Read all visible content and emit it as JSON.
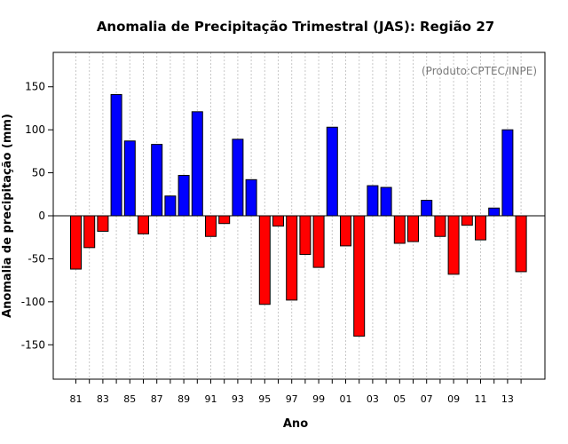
{
  "chart_data": {
    "type": "bar",
    "title": "Anomalia de Precipitação Trimestral (JAS): Região 27",
    "xlabel": "Ano",
    "ylabel": "Anomalia de precipitação (mm)",
    "source_note": "(Produto:CPTEC/INPE)",
    "ylim": [
      -190,
      190
    ],
    "yticks": [
      -150,
      -100,
      -50,
      0,
      50,
      100,
      150
    ],
    "categories": [
      "81",
      "82",
      "83",
      "84",
      "85",
      "86",
      "87",
      "88",
      "89",
      "90",
      "91",
      "92",
      "93",
      "94",
      "95",
      "96",
      "97",
      "98",
      "99",
      "00",
      "01",
      "02",
      "03",
      "04",
      "05",
      "06",
      "07",
      "08",
      "09",
      "10",
      "11",
      "12",
      "13",
      "14"
    ],
    "xtick_labels_shown": [
      "81",
      "83",
      "85",
      "87",
      "89",
      "91",
      "93",
      "95",
      "97",
      "99",
      "01",
      "03",
      "05",
      "07",
      "09",
      "11",
      "13"
    ],
    "values": [
      -62,
      -37,
      -18,
      141,
      87,
      -21,
      83,
      23,
      47,
      121,
      -24,
      -9,
      89,
      42,
      -103,
      -12,
      -98,
      -45,
      -60,
      103,
      -35,
      -140,
      35,
      33,
      -32,
      -30,
      18,
      -24,
      -68,
      -11,
      -28,
      9,
      100,
      -65
    ],
    "colors": {
      "positive": "#0000ff",
      "negative": "#ff0000"
    },
    "grid": true
  }
}
